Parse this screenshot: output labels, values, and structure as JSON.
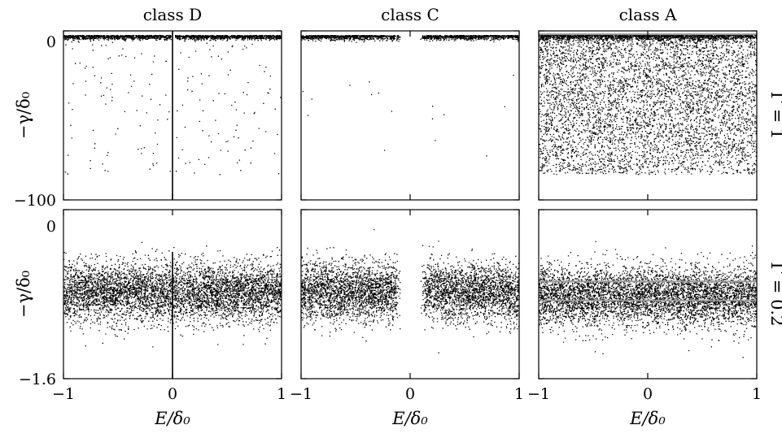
{
  "chart_data": [
    {
      "type": "scatter",
      "panel": "top-left",
      "title": "class D",
      "row_label": "Γ = 1",
      "ylabel": "−γ/δ₀",
      "xlabel": "",
      "xlim": [
        -1,
        1
      ],
      "ylim": [
        -100,
        0
      ],
      "y_tick_labels": [
        "0",
        "−100"
      ],
      "x_tick_labels": [],
      "bulk": {
        "y_center": -3.5,
        "y_spread": 1.5,
        "edge": "top"
      },
      "tail": {
        "y_range": [
          -85,
          -4
        ],
        "density": "sparse"
      },
      "central_line": {
        "x": 0,
        "y_range": [
          -100,
          0
        ]
      },
      "gap_near_zero": 0.02
    },
    {
      "type": "scatter",
      "panel": "top-middle",
      "title": "class C",
      "ylabel": "",
      "xlabel": "",
      "xlim": [
        -1,
        1
      ],
      "ylim": [
        -100,
        0
      ],
      "y_tick_labels": [],
      "x_tick_labels": [],
      "bulk": {
        "y_center": -3.5,
        "y_spread": 1.5,
        "edge": "top"
      },
      "tail": {
        "y_range": [
          -80,
          -4
        ],
        "density": "very sparse"
      },
      "gap_near_zero": 0.15
    },
    {
      "type": "scatter",
      "panel": "top-right",
      "title": "class A",
      "ylabel": "",
      "xlabel": "",
      "xlim": [
        -1,
        1
      ],
      "ylim": [
        -100,
        0
      ],
      "y_tick_labels": [],
      "x_tick_labels": [],
      "bulk": {
        "y_center": -3,
        "y_spread": 2,
        "edge": "top"
      },
      "tail": {
        "y_range": [
          -85,
          -3
        ],
        "density": "dense"
      },
      "line_marker": {
        "y": -2,
        "color": "#9a9a9a"
      }
    },
    {
      "type": "scatter",
      "panel": "bottom-left",
      "row_label": "Γ = 0.2",
      "ylabel": "−γ/δ₀",
      "xlabel": "E/δ₀",
      "xlim": [
        -1,
        1
      ],
      "ylim": [
        -1.6,
        0
      ],
      "y_tick_labels": [
        "0",
        "−1.6"
      ],
      "x_tick_labels": [
        "−1",
        "0",
        "1"
      ],
      "bulk": {
        "y_center": -0.78,
        "y_spread": 0.14
      },
      "central_line": {
        "x": 0,
        "y_range": [
          -1.6,
          -0.4
        ]
      }
    },
    {
      "type": "scatter",
      "panel": "bottom-middle",
      "ylabel": "",
      "xlabel": "E/δ₀",
      "xlim": [
        -1,
        1
      ],
      "ylim": [
        -1.6,
        0
      ],
      "y_tick_labels": [],
      "x_tick_labels": [
        "−1",
        "0",
        "1"
      ],
      "bulk": {
        "y_center": -0.78,
        "y_spread": 0.14
      },
      "gap_near_zero": 0.15
    },
    {
      "type": "scatter",
      "panel": "bottom-right",
      "ylabel": "",
      "xlabel": "E/δ₀",
      "xlim": [
        -1,
        1
      ],
      "ylim": [
        -1.6,
        0
      ],
      "y_tick_labels": [],
      "x_tick_labels": [
        "−1",
        "0",
        "1"
      ],
      "bulk": {
        "y_center": -0.82,
        "y_spread": 0.14
      },
      "line_markers": [
        {
          "y": -0.68,
          "color": "#9a9a9a"
        },
        {
          "y": -0.86,
          "color": "#9a9a9a"
        }
      ]
    }
  ]
}
